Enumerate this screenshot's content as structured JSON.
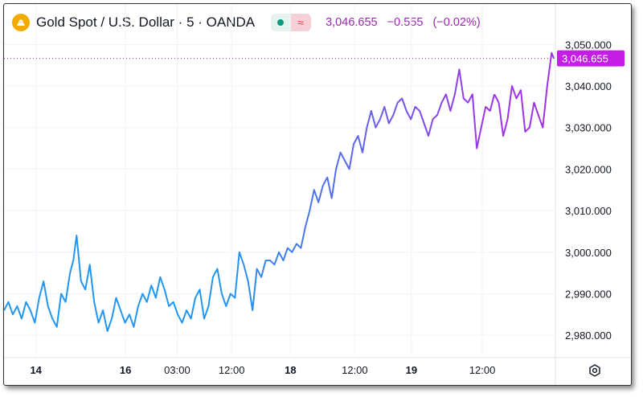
{
  "header": {
    "title": "Gold Spot / U.S. Dollar · 5 · OANDA",
    "status_icon": "market-open-dot-icon",
    "wave_glyph": "≈",
    "price": "3,046.655",
    "change": "−0.555",
    "change_pct": "(−0.02%)"
  },
  "colors": {
    "line_start": "#2196f3",
    "line_end": "#a032e8",
    "quote": "#9c27b0",
    "price_tag": "#c41ee6",
    "logo": "#f2a900"
  },
  "chart_data": {
    "type": "line",
    "title": "",
    "xlabel": "",
    "ylabel": "",
    "ylim": [
      2975,
      3052
    ],
    "y_ticks": [
      "3,050.000",
      "3,040.000",
      "3,030.000",
      "3,020.000",
      "3,010.000",
      "3,000.000",
      "2,990.000",
      "2,980.000"
    ],
    "y_tick_values": [
      3050,
      3040,
      3030,
      3020,
      3010,
      3000,
      2990,
      2980
    ],
    "x_ticks": [
      {
        "label": "14",
        "bold": true,
        "t": 0.058
      },
      {
        "label": "16",
        "bold": true,
        "t": 0.221
      },
      {
        "label": "03:00",
        "bold": false,
        "t": 0.315
      },
      {
        "label": "12:00",
        "bold": false,
        "t": 0.414
      },
      {
        "label": "18",
        "bold": true,
        "t": 0.521
      },
      {
        "label": "12:00",
        "bold": false,
        "t": 0.638
      },
      {
        "label": "19",
        "bold": true,
        "t": 0.741
      },
      {
        "label": "12:00",
        "bold": false,
        "t": 0.87
      }
    ],
    "last_price_label": "3,046.655",
    "last_price": 3046.655,
    "grid": true,
    "series": [
      {
        "x": [
          0,
          0.008,
          0.016,
          0.024,
          0.032,
          0.04,
          0.048,
          0.056,
          0.064,
          0.072,
          0.08,
          0.088,
          0.096,
          0.104,
          0.112,
          0.12,
          0.126,
          0.132,
          0.14,
          0.148,
          0.156,
          0.164,
          0.172,
          0.18,
          0.188,
          0.196,
          0.204,
          0.212,
          0.22,
          0.228,
          0.236,
          0.244,
          0.252,
          0.26,
          0.268,
          0.276,
          0.284,
          0.292,
          0.3,
          0.308,
          0.316,
          0.324,
          0.332,
          0.34,
          0.348,
          0.356,
          0.364,
          0.372,
          0.38,
          0.388,
          0.396,
          0.404,
          0.412,
          0.42,
          0.428,
          0.436,
          0.444,
          0.452,
          0.46,
          0.468,
          0.476,
          0.484,
          0.492,
          0.5,
          0.508,
          0.516,
          0.524,
          0.532,
          0.54,
          0.548,
          0.556,
          0.564,
          0.572,
          0.58,
          0.588,
          0.596,
          0.604,
          0.612,
          0.62,
          0.628,
          0.636,
          0.644,
          0.652,
          0.66,
          0.668,
          0.676,
          0.684,
          0.692,
          0.7,
          0.708,
          0.716,
          0.724,
          0.732,
          0.74,
          0.748,
          0.756,
          0.764,
          0.772,
          0.78,
          0.788,
          0.796,
          0.804,
          0.812,
          0.82,
          0.828,
          0.836,
          0.844,
          0.852,
          0.86,
          0.868,
          0.876,
          0.884,
          0.892
        ],
        "y": [
          2986,
          2988,
          2985,
          2987,
          2984,
          2988,
          2986,
          2983,
          2989,
          2993,
          2987,
          2984,
          2982,
          2990,
          2988,
          2995,
          2998,
          3004,
          2993,
          2991,
          2997,
          2988,
          2983,
          2986,
          2981,
          2984,
          2989,
          2986,
          2983,
          2985,
          2982,
          2987,
          2990,
          2988,
          2992,
          2989,
          2994,
          2991,
          2987,
          2988,
          2985,
          2983,
          2986,
          2984,
          2989,
          2991,
          2984,
          2987,
          2994,
          2996,
          2990,
          2987,
          2990,
          2989,
          3000,
          2997,
          2993,
          2986,
          2996,
          2994,
          2998,
          2998,
          2997,
          3000,
          2998,
          3001,
          3000,
          3002,
          3001,
          3006,
          3010,
          3015,
          3012,
          3016,
          3018,
          3013,
          3020,
          3024,
          3022,
          3020,
          3026,
          3028,
          3024,
          3030,
          3034,
          3030,
          3032,
          3035,
          3031,
          3033,
          3036,
          3037,
          3034,
          3032,
          3035,
          3034,
          3031,
          3028,
          3032,
          3033,
          3036,
          3038,
          3034,
          3038,
          3044,
          3037,
          3036,
          3038,
          3025,
          3030,
          3035,
          3034,
          3038
        ]
      },
      {
        "x": [
          0.9,
          0.908,
          0.916,
          0.924,
          0.932,
          0.94,
          0.948,
          0.956,
          0.964,
          0.972,
          0.98,
          0.988,
          0.996,
          1.0
        ],
        "y": [
          3036,
          3028,
          3032,
          3040,
          3037,
          3039,
          3029,
          3030,
          3036,
          3033,
          3030,
          3040,
          3048,
          3046.655
        ]
      }
    ]
  }
}
